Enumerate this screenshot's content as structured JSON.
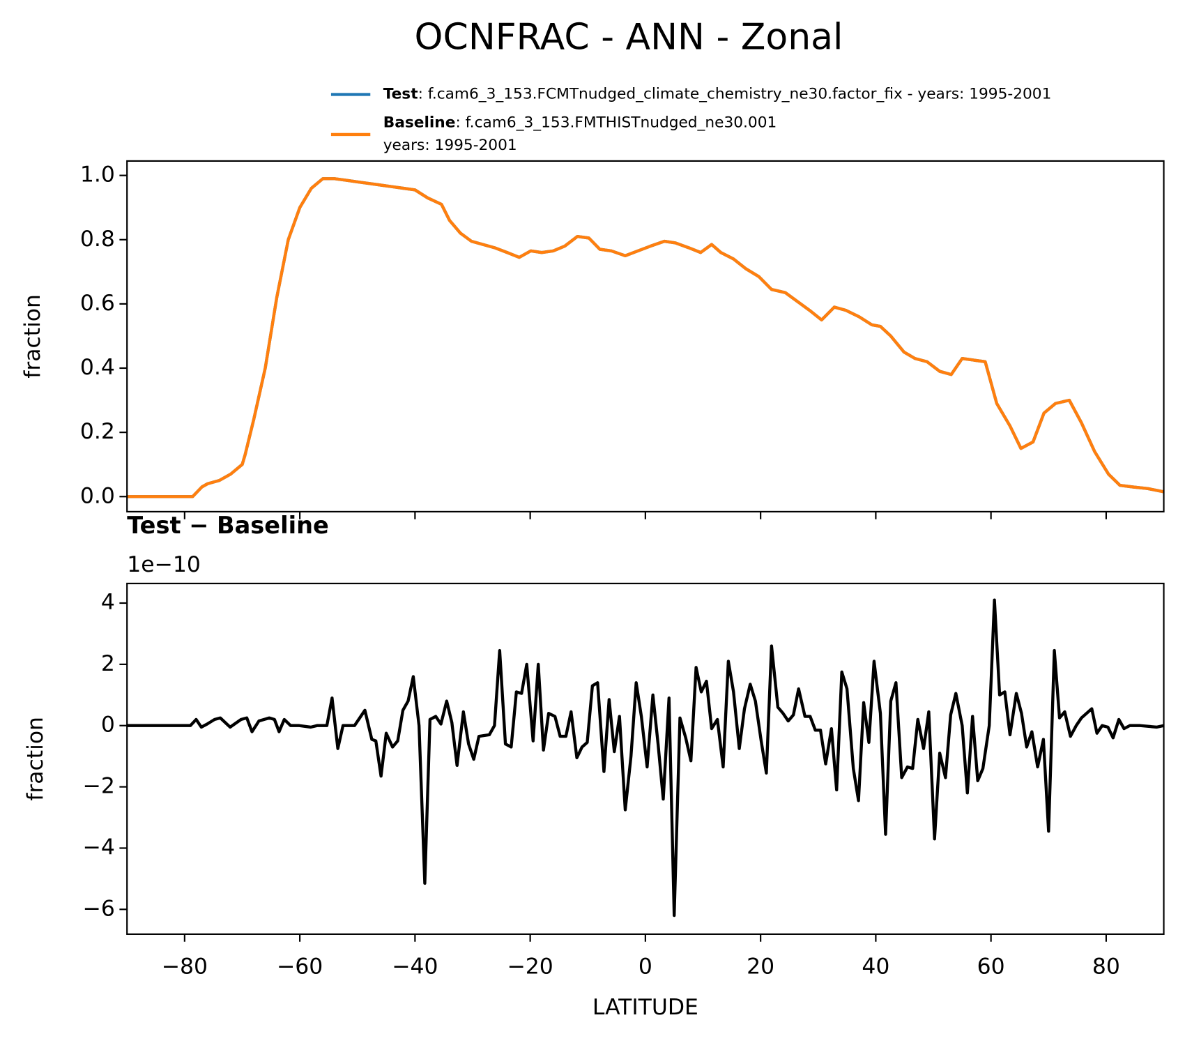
{
  "title": "OCNFRAC - ANN - Zonal",
  "chart_data": [
    {
      "type": "line",
      "ylabel": "fraction",
      "x": [
        -90,
        -85,
        -80,
        -78.6,
        -77,
        -76,
        -74,
        -72,
        -70,
        -69.5,
        -68,
        -66,
        -64,
        -62,
        -60,
        -58,
        -56,
        -54,
        -52,
        -50,
        -48,
        -46,
        -44,
        -42,
        -40,
        -37.8,
        -35.4,
        -34,
        -32.1,
        -30.2,
        -28.2,
        -26.2,
        -24,
        -21.9,
        -19.9,
        -18,
        -16,
        -14,
        -11.8,
        -9.8,
        -7.9,
        -5.9,
        -3.5,
        -1.3,
        0.9,
        3.3,
        5.2,
        7.5,
        9.6,
        11.5,
        13.1,
        15.3,
        17.4,
        19.7,
        21.9,
        24.3,
        26.2,
        28.5,
        30.6,
        32.8,
        34.8,
        37.1,
        39.3,
        40.8,
        42.6,
        44.9,
        46.8,
        48.9,
        51.1,
        53.1,
        55,
        57,
        59,
        61,
        63.3,
        65.2,
        67.3,
        69.2,
        71.2,
        73.6,
        75.7,
        78,
        80.4,
        82.4,
        84.6,
        87.2,
        90
      ],
      "series": [
        {
          "name": "Test",
          "legend_text": [
            ": f.cam6_3_153.FCMTnudged_climate_chemistry_ne30.factor_fix - years: 1995-2001"
          ],
          "color": "#1f77b4",
          "values": [
            0,
            0,
            0,
            0,
            0.03,
            0.04,
            0.05,
            0.07,
            0.1,
            0.13,
            0.24,
            0.4,
            0.62,
            0.8,
            0.9,
            0.96,
            0.99,
            0.99,
            0.985,
            0.98,
            0.975,
            0.97,
            0.965,
            0.96,
            0.955,
            0.93,
            0.91,
            0.86,
            0.82,
            0.795,
            0.785,
            0.775,
            0.76,
            0.745,
            0.765,
            0.76,
            0.765,
            0.78,
            0.81,
            0.805,
            0.77,
            0.765,
            0.75,
            0.765,
            0.78,
            0.795,
            0.79,
            0.775,
            0.76,
            0.785,
            0.76,
            0.74,
            0.71,
            0.685,
            0.645,
            0.635,
            0.61,
            0.58,
            0.55,
            0.59,
            0.58,
            0.56,
            0.535,
            0.53,
            0.5,
            0.45,
            0.43,
            0.42,
            0.39,
            0.38,
            0.43,
            0.425,
            0.42,
            0.29,
            0.22,
            0.15,
            0.17,
            0.26,
            0.29,
            0.3,
            0.23,
            0.14,
            0.07,
            0.035,
            0.03,
            0.025,
            0.015
          ]
        },
        {
          "name": "Baseline",
          "legend_text": [
            ": f.cam6_3_153.FMTHISTnudged_ne30.001",
            "years: 1995-2001"
          ],
          "color": "#ff7f0e",
          "values": [
            0,
            0,
            0,
            0,
            0.03,
            0.04,
            0.05,
            0.07,
            0.1,
            0.13,
            0.24,
            0.4,
            0.62,
            0.8,
            0.9,
            0.96,
            0.99,
            0.99,
            0.985,
            0.98,
            0.975,
            0.97,
            0.965,
            0.96,
            0.955,
            0.93,
            0.91,
            0.86,
            0.82,
            0.795,
            0.785,
            0.775,
            0.76,
            0.745,
            0.765,
            0.76,
            0.765,
            0.78,
            0.81,
            0.805,
            0.77,
            0.765,
            0.75,
            0.765,
            0.78,
            0.795,
            0.79,
            0.775,
            0.76,
            0.785,
            0.76,
            0.74,
            0.71,
            0.685,
            0.645,
            0.635,
            0.61,
            0.58,
            0.55,
            0.59,
            0.58,
            0.56,
            0.535,
            0.53,
            0.5,
            0.45,
            0.43,
            0.42,
            0.39,
            0.38,
            0.43,
            0.425,
            0.42,
            0.29,
            0.22,
            0.15,
            0.17,
            0.26,
            0.29,
            0.3,
            0.23,
            0.14,
            0.07,
            0.035,
            0.03,
            0.025,
            0.015
          ]
        }
      ],
      "xlim": [
        -90,
        90
      ],
      "xticks": [
        -80,
        -60,
        -40,
        -20,
        0,
        20,
        40,
        60,
        80
      ],
      "ylim": [
        -0.047,
        1.045
      ],
      "yticks": [
        {
          "value": 0,
          "label": "0.0"
        },
        0.2,
        0.4,
        0.6,
        0.8,
        {
          "value": 1,
          "label": "1.0"
        }
      ]
    },
    {
      "type": "line",
      "title": "Test − Baseline",
      "offset_text": "1e−10",
      "ylabel": "fraction",
      "xlabel": "LATITUDE",
      "x": [
        -90,
        -79,
        -78,
        -77.1,
        -76.1,
        -74.8,
        -73.8,
        -72.1,
        -70.2,
        -69.2,
        -68.3,
        -67.1,
        -65.3,
        -64.4,
        -63.6,
        -62.7,
        -61.6,
        -60.1,
        -58.1,
        -57,
        -55.3,
        -54.4,
        -53.4,
        -52.5,
        -50.5,
        -48.7,
        -47.5,
        -46.8,
        -45.9,
        -45,
        -43.9,
        -43,
        -42.1,
        -41.2,
        -40.3,
        -39.3,
        -38.3,
        -37.4,
        -36.4,
        -35.5,
        -34.5,
        -33.6,
        -32.7,
        -31.6,
        -30.7,
        -29.8,
        -28.9,
        -27.1,
        -26.2,
        -25.3,
        -24.3,
        -23.3,
        -22.4,
        -21.5,
        -20.6,
        -19.5,
        -18.6,
        -17.7,
        -16.8,
        -15.7,
        -14.8,
        -13.8,
        -12.9,
        -11.9,
        -11,
        -10.1,
        -9.2,
        -8.3,
        -7.2,
        -6.3,
        -5.4,
        -4.5,
        -3.5,
        -2.5,
        -1.6,
        -0.7,
        0.3,
        1.3,
        2.2,
        3.1,
        4.1,
        5,
        6,
        7,
        7.9,
        8.8,
        9.7,
        10.6,
        11.5,
        12.5,
        13.5,
        14.4,
        15.3,
        16.3,
        17.2,
        18.2,
        19.1,
        20.1,
        21,
        21.9,
        23,
        23.9,
        24.8,
        25.7,
        26.6,
        27.7,
        28.6,
        29.5,
        30.4,
        31.3,
        32.3,
        33.2,
        34.1,
        35,
        36.1,
        37,
        37.9,
        38.8,
        39.7,
        40.8,
        41.7,
        42.6,
        43.5,
        44.5,
        45.5,
        46.4,
        47.3,
        48.3,
        49.2,
        50.2,
        51.1,
        52.1,
        53,
        53.9,
        55,
        55.9,
        56.8,
        57.7,
        58.6,
        59.7,
        60.6,
        61.5,
        62.4,
        63.3,
        64.4,
        65.3,
        66.2,
        67.1,
        68.1,
        69.1,
        70,
        71,
        71.9,
        72.8,
        73.8,
        74.8,
        75.7,
        77.5,
        78.4,
        79.3,
        80.3,
        81.2,
        82.2,
        83.1,
        84.1,
        85.9,
        88.8,
        90
      ],
      "series": [
        {
          "color": "#000000",
          "values": [
            0,
            0,
            0.2,
            -0.05,
            0.05,
            0.2,
            0.25,
            -0.05,
            0.2,
            0.25,
            -0.2,
            0.15,
            0.25,
            0.2,
            -0.2,
            0.2,
            0,
            0,
            -0.05,
            0,
            0,
            0.9,
            -0.75,
            0,
            0,
            0.5,
            -0.45,
            -0.5,
            -1.65,
            -0.25,
            -0.7,
            -0.5,
            0.5,
            0.8,
            1.6,
            0,
            -5.15,
            0.2,
            0.3,
            0.05,
            0.8,
            0.1,
            -1.3,
            0.45,
            -0.6,
            -1.1,
            -0.35,
            -0.3,
            0,
            2.45,
            -0.6,
            -0.7,
            1.1,
            1.05,
            2,
            -0.5,
            2,
            -0.8,
            0.4,
            0.3,
            -0.35,
            -0.35,
            0.45,
            -1.05,
            -0.7,
            -0.55,
            1.3,
            1.4,
            -1.5,
            0.85,
            -0.85,
            0.3,
            -2.75,
            -1,
            1.4,
            0.3,
            -1.35,
            1,
            -0.6,
            -2.4,
            0.9,
            -6.2,
            0.25,
            -0.4,
            -1.15,
            1.9,
            1.1,
            1.45,
            -0.1,
            0.2,
            -1.35,
            2.1,
            1.1,
            -0.75,
            0.55,
            1.35,
            0.8,
            -0.5,
            -1.55,
            2.6,
            0.6,
            0.4,
            0.15,
            0.35,
            1.2,
            0.3,
            0.3,
            -0.15,
            -0.15,
            -1.25,
            -0.1,
            -2.1,
            1.75,
            1.2,
            -1.4,
            -2.45,
            0.75,
            -0.55,
            2.1,
            0.4,
            -3.55,
            0.8,
            1.4,
            -1.7,
            -1.35,
            -1.4,
            0.2,
            -0.75,
            0.45,
            -3.7,
            -0.9,
            -1.7,
            0.35,
            1.05,
            0,
            -2.2,
            0.3,
            -1.8,
            -1.4,
            0,
            4.1,
            1,
            1.1,
            -0.3,
            1.05,
            0.4,
            -0.7,
            -0.2,
            -1.35,
            -0.45,
            -3.45,
            2.45,
            0.25,
            0.45,
            -0.35,
            0,
            0.25,
            0.55,
            -0.25,
            0,
            -0.05,
            -0.4,
            0.2,
            -0.1,
            0,
            0,
            -0.05,
            0
          ]
        }
      ],
      "xlim": [
        -90,
        90
      ],
      "xticks": [
        {
          "value": -80,
          "label": "−80"
        },
        {
          "value": -60,
          "label": "−60"
        },
        {
          "value": -40,
          "label": "−40"
        },
        {
          "value": -20,
          "label": "−20"
        },
        0,
        20,
        40,
        60,
        80
      ],
      "ylim": [
        -6.81,
        4.64
      ],
      "yticks": [
        {
          "value": -6,
          "label": "−6"
        },
        {
          "value": -4,
          "label": "−4"
        },
        {
          "value": -2,
          "label": "−2"
        },
        0,
        2,
        4
      ]
    }
  ]
}
